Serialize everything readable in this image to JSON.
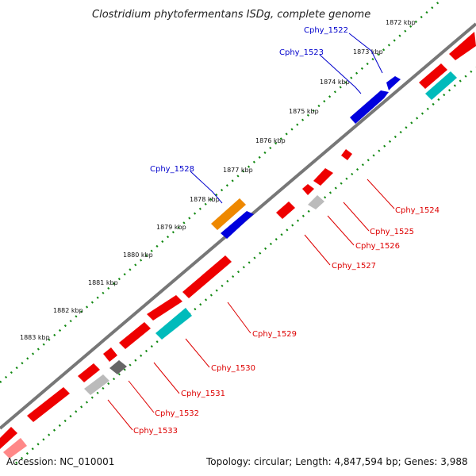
{
  "title": "Clostridium phytofermentans ISDg, complete genome",
  "footer": {
    "accession": "Accession: NC_010001",
    "summary": "Topology: circular; Length: 4,847,594 bp; Genes: 3,988"
  },
  "ticks": [
    "1872 kbp",
    "1873 kbp",
    "1874 kbp",
    "1875 kbp",
    "1876 kbp",
    "1877 kbp",
    "1878 kbp",
    "1879 kbp",
    "1880 kbp",
    "1881 kbp",
    "1882 kbp",
    "1883 kbp"
  ],
  "labels": {
    "forward": [
      "Cphy_1522",
      "Cphy_1523",
      "Cphy_1528"
    ],
    "reverse": [
      "Cphy_1524",
      "Cphy_1525",
      "Cphy_1526",
      "Cphy_1527",
      "Cphy_1529",
      "Cphy_1530",
      "Cphy_1531",
      "Cphy_1532",
      "Cphy_1533"
    ]
  },
  "colors": {
    "forward_label": "#0000cc",
    "reverse_label": "#dd0000",
    "backbone": "#777777",
    "ruler": "#118811",
    "gene_red": "#ee0000",
    "gene_blue": "#0000dd",
    "gene_orange": "#ee8800",
    "gene_cyan": "#00bbbb",
    "gene_gray": "#bbbbbb",
    "gene_darkgray": "#666666"
  }
}
